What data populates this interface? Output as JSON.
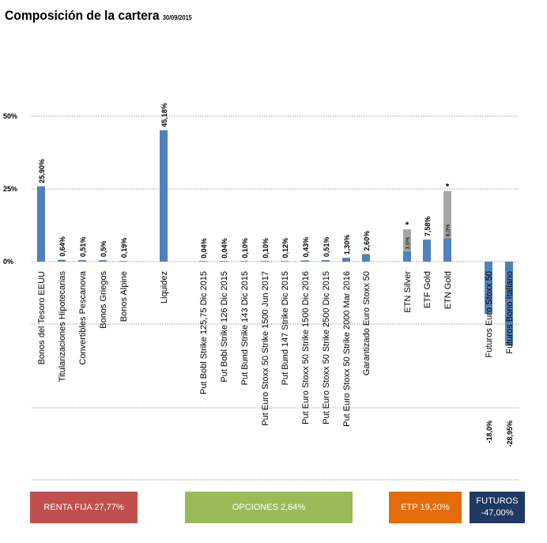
{
  "header": {
    "title": "Composición de la cartera",
    "date": "30/09/2015"
  },
  "chart_data": {
    "type": "bar",
    "ylim": [
      -50,
      60
    ],
    "yticks": [
      {
        "value": 50,
        "label": "50%"
      },
      {
        "value": 25,
        "label": "25%"
      },
      {
        "value": 0,
        "label": "0%"
      }
    ],
    "bars": [
      {
        "category": "Bonos del Tesoro EEUU",
        "value": 25.9,
        "label": "25,90%"
      },
      {
        "category": "Titularizaciones Hipotecarias",
        "value": 0.64,
        "label": "0,64%"
      },
      {
        "category": "Convertibles Pescanova",
        "value": 0.51,
        "label": "0,51%"
      },
      {
        "category": "Bonos Griegos",
        "value": 0.5,
        "label": "0,5%"
      },
      {
        "category": "Bonos Alpine",
        "value": 0.19,
        "label": "0,19%"
      },
      {
        "category": "Liquidez",
        "value": 45.18,
        "label": "45,18%"
      },
      {
        "category": "Put Bobl Strike 125,75 Dic 2015",
        "value": 0.04,
        "label": "0,04%"
      },
      {
        "category": "Put Bobl Strike 126 Dic 2015",
        "value": 0.04,
        "label": "0,04%"
      },
      {
        "category": "Put Bund Strike 143 Dic 2015",
        "value": 0.1,
        "label": "0,10%"
      },
      {
        "category": "Put Euro Stoxx 50 Strike 1500 Jun 2017",
        "value": 0.1,
        "label": "0,10%"
      },
      {
        "category": "Put Bund 147 Strike Dic 2015",
        "value": 0.12,
        "label": "0,12%"
      },
      {
        "category": "Put Euro Stoxx 50 Strike 1500 Dic 2016",
        "value": 0.43,
        "label": "0,43%"
      },
      {
        "category": "Put Euro Stoxx 50 Strike 2500 Dic 2015",
        "value": 0.51,
        "label": "0,51%"
      },
      {
        "category": "Put Euro Stoxx 50 Strike 2000 Mar 2016",
        "value": 1.3,
        "label": "1,30%"
      },
      {
        "category": "Garantizado Euro Stoxx 50",
        "value": 2.6,
        "label": "2,60%"
      },
      {
        "category": "ETN Silver",
        "value": 3.6,
        "label": "3,6%",
        "extra": 7.5,
        "marker": "*"
      },
      {
        "category": "ETF Gold",
        "value": 7.58,
        "label": "7,58%"
      },
      {
        "category": "ETN Gold",
        "value": 8.0,
        "label": "8,0%",
        "extra": 16.3,
        "marker": "*"
      },
      {
        "category": "Futuros Euro Stoxx 50",
        "value": -18.0,
        "label": "-18,0%"
      },
      {
        "category": "Futuros Bono Italiano",
        "value": -28.95,
        "label": "-28,95%"
      }
    ],
    "colors": {
      "bar": "#4f81bd",
      "extra": "#a6a6a6",
      "grid": "#7f7f7f"
    }
  },
  "legend": [
    {
      "label": "RENTA FIJA 27,77%",
      "color": "#c0504d"
    },
    {
      "label": "OPCIONES 2,64%",
      "color": "#9bbb59"
    },
    {
      "label": "ETP 19,20%",
      "color": "#e46c0a"
    },
    {
      "label": "FUTUROS -47,00%",
      "color": "#1f3864"
    }
  ]
}
